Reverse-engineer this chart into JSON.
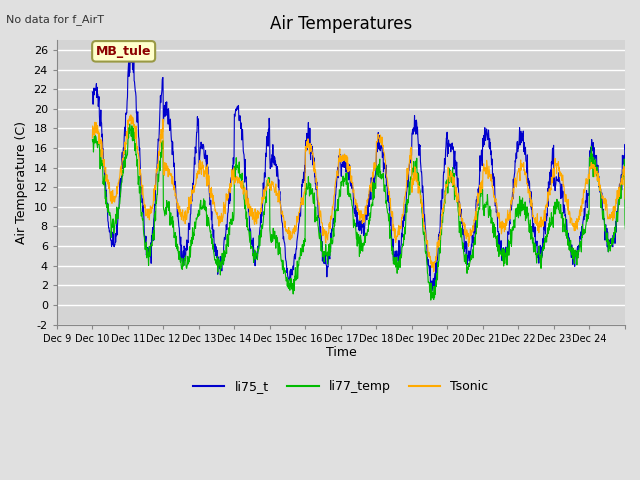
{
  "title": "Air Temperatures",
  "ylabel": "Air Temperature (C)",
  "xlabel": "Time",
  "top_left_text": "No data for f_AirT",
  "annotation_box": "MB_tule",
  "ylim": [
    -2,
    27
  ],
  "yticks": [
    -2,
    0,
    2,
    4,
    6,
    8,
    10,
    12,
    14,
    16,
    18,
    20,
    22,
    24,
    26
  ],
  "x_start": 8,
  "x_end": 24,
  "x_tick_positions": [
    8,
    9,
    10,
    11,
    12,
    13,
    14,
    15,
    16,
    17,
    18,
    19,
    20,
    21,
    22,
    23,
    24
  ],
  "x_tick_labels": [
    "Dec 9",
    "Dec 10",
    "Dec 11",
    "Dec 12",
    "Dec 13",
    "Dec 14",
    "Dec 15",
    "Dec 16",
    "Dec 17",
    "Dec 18",
    "Dec 19",
    "Dec 20",
    "Dec 21",
    "Dec 22",
    "Dec 23",
    "Dec 24",
    ""
  ],
  "colors": {
    "li75_t": "#0000cc",
    "li77_temp": "#00bb00",
    "Tsonic": "#ffaa00"
  },
  "fig_bg_color": "#e0e0e0",
  "plot_bg_color": "#d4d4d4",
  "grid_color": "#ffffff",
  "legend_items": [
    "li75_t",
    "li77_temp",
    "Tsonic"
  ],
  "day_peaks_blue": [
    22,
    25,
    20,
    16,
    20,
    15,
    17,
    14.5,
    16.5,
    18.5,
    16.5,
    17.5,
    17,
    12.5,
    16,
    17
  ],
  "night_lows_blue": [
    6,
    5,
    5,
    4,
    5,
    3,
    4,
    8,
    5,
    2,
    5,
    5,
    5,
    5,
    6,
    7
  ],
  "day_peaks_green": [
    17,
    18,
    10,
    10,
    14,
    7,
    12,
    13,
    14,
    14,
    13,
    10,
    10,
    10,
    15,
    8
  ],
  "night_lows_green": [
    8,
    5,
    4,
    4,
    5,
    2,
    5,
    6,
    4,
    1,
    4,
    5,
    5,
    5,
    6,
    7
  ],
  "day_peaks_orange": [
    18,
    19,
    14,
    14,
    13,
    12,
    16.5,
    15,
    17,
    13,
    13,
    14,
    14,
    14,
    14,
    11
  ],
  "night_lows_orange": [
    11,
    9,
    9,
    9,
    9,
    7,
    7,
    9,
    7,
    4,
    7,
    8,
    8,
    8,
    9,
    9
  ]
}
